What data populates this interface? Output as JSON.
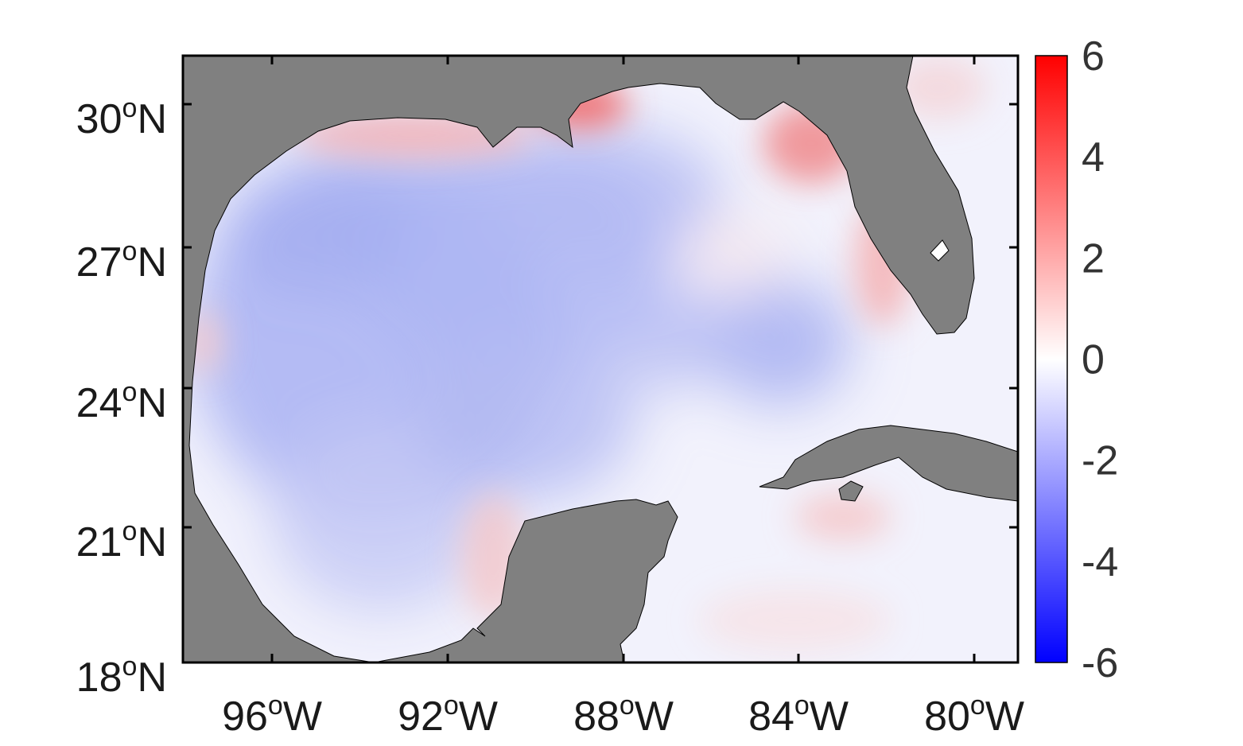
{
  "map": {
    "lat_ticks": [
      {
        "deg": "30",
        "sup": "o",
        "hem": "N"
      },
      {
        "deg": "27",
        "sup": "o",
        "hem": "N"
      },
      {
        "deg": "24",
        "sup": "o",
        "hem": "N"
      },
      {
        "deg": "21",
        "sup": "o",
        "hem": "N"
      },
      {
        "deg": "18",
        "sup": "o",
        "hem": "N"
      }
    ],
    "lon_ticks": [
      {
        "deg": "96",
        "sup": "o",
        "hem": "W"
      },
      {
        "deg": "92",
        "sup": "o",
        "hem": "W"
      },
      {
        "deg": "88",
        "sup": "o",
        "hem": "W"
      },
      {
        "deg": "84",
        "sup": "o",
        "hem": "W"
      },
      {
        "deg": "80",
        "sup": "o",
        "hem": "W"
      }
    ],
    "land_color": "#808080",
    "colormap": "blue-white-red"
  },
  "colorbar": {
    "ticks": [
      "6",
      "4",
      "2",
      "0",
      "-2",
      "-4",
      "-6"
    ],
    "min": -6,
    "max": 6,
    "low_color": "#0000ff",
    "mid_color": "#ffffff",
    "high_color": "#ff0000"
  }
}
